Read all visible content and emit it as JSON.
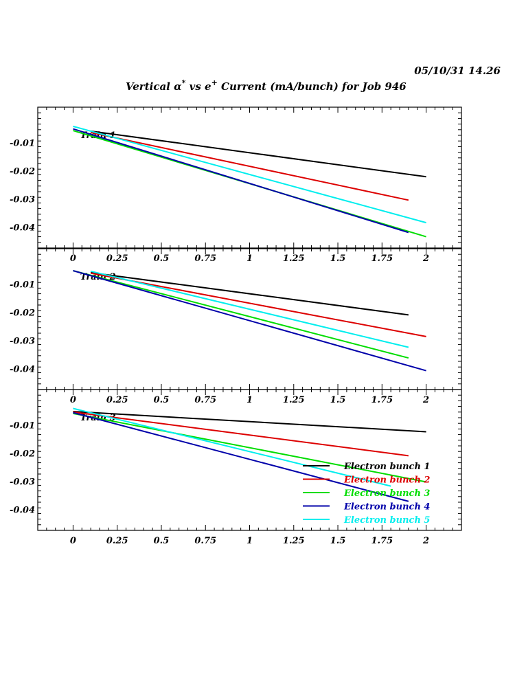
{
  "header": {
    "datetime": "05/10/31   14.26",
    "title_main": "Vertical α",
    "title_sup1": "*",
    "title_mid": " vs e",
    "title_sup2": "+",
    "title_end": " Current (mA/bunch) for Job 946"
  },
  "colors": {
    "series": [
      "#000000",
      "#dd0000",
      "#00dd00",
      "#0000aa",
      "#00eeee"
    ]
  },
  "chart_data": [
    {
      "type": "line",
      "panel_label": "Train 1",
      "xlim": [
        -0.2,
        2.2
      ],
      "ylim": [
        -0.0475,
        0.0025
      ],
      "x_ticks": [
        0,
        0.25,
        0.5,
        0.75,
        1,
        1.25,
        1.5,
        1.75,
        2
      ],
      "x_tick_labels": [
        "0",
        "0.25",
        "0.5",
        "0.75",
        "1",
        "1.25",
        "1.5",
        "1.75",
        "2"
      ],
      "y_ticks": [
        -0.01,
        -0.02,
        -0.03,
        -0.04
      ],
      "y_tick_labels": [
        "-0.01",
        "-0.02",
        "-0.03",
        "-0.04"
      ],
      "series": [
        {
          "name": "Electron bunch 1",
          "x": [
            0.1,
            2.0
          ],
          "y": [
            -0.006,
            -0.0222
          ]
        },
        {
          "name": "Electron bunch 2",
          "x": [
            0.1,
            1.9
          ],
          "y": [
            -0.0065,
            -0.0305
          ]
        },
        {
          "name": "Electron bunch 3",
          "x": [
            0.0,
            2.0
          ],
          "y": [
            -0.0058,
            -0.0435
          ]
        },
        {
          "name": "Electron bunch 4",
          "x": [
            0.0,
            1.9
          ],
          "y": [
            -0.0052,
            -0.042
          ]
        },
        {
          "name": "Electron bunch 5",
          "x": [
            0.0,
            2.0
          ],
          "y": [
            -0.0043,
            -0.0385
          ]
        }
      ]
    },
    {
      "type": "line",
      "panel_label": "Train 2",
      "xlim": [
        -0.2,
        2.2
      ],
      "ylim": [
        -0.0475,
        0.0025
      ],
      "x_ticks": [
        0,
        0.25,
        0.5,
        0.75,
        1,
        1.25,
        1.5,
        1.75,
        2
      ],
      "x_tick_labels": [
        "0",
        "0.25",
        "0.5",
        "0.75",
        "1",
        "1.25",
        "1.5",
        "1.75",
        "2"
      ],
      "y_ticks": [
        -0.01,
        -0.02,
        -0.03,
        -0.04
      ],
      "y_tick_labels": [
        "-0.01",
        "-0.02",
        "-0.03",
        "-0.04"
      ],
      "series": [
        {
          "name": "Electron bunch 1",
          "x": [
            0.1,
            1.9
          ],
          "y": [
            -0.006,
            -0.021
          ]
        },
        {
          "name": "Electron bunch 2",
          "x": [
            0.1,
            2.0
          ],
          "y": [
            -0.0062,
            -0.0287
          ]
        },
        {
          "name": "Electron bunch 3",
          "x": [
            0.0,
            1.9
          ],
          "y": [
            -0.0053,
            -0.0363
          ]
        },
        {
          "name": "Electron bunch 4",
          "x": [
            0.0,
            2.0
          ],
          "y": [
            -0.0053,
            -0.0408
          ]
        },
        {
          "name": "Electron bunch 5",
          "x": [
            0.1,
            1.9
          ],
          "y": [
            -0.0055,
            -0.0325
          ]
        }
      ]
    },
    {
      "type": "line",
      "panel_label": "Train 3",
      "xlim": [
        -0.2,
        2.2
      ],
      "ylim": [
        -0.0475,
        0.0025
      ],
      "x_ticks": [
        0,
        0.25,
        0.5,
        0.75,
        1,
        1.25,
        1.5,
        1.75,
        2
      ],
      "x_tick_labels": [
        "0",
        "0.25",
        "0.5",
        "0.75",
        "1",
        "1.25",
        "1.5",
        "1.75",
        "2"
      ],
      "y_ticks": [
        -0.01,
        -0.02,
        -0.03,
        -0.04
      ],
      "y_tick_labels": [
        "-0.01",
        "-0.02",
        "-0.03",
        "-0.04"
      ],
      "legend": [
        "Electron bunch 1",
        "Electron bunch 2",
        "Electron bunch 3",
        "Electron bunch 4",
        "Electron bunch 5"
      ],
      "series": [
        {
          "name": "Electron bunch 1",
          "x": [
            0.0,
            2.0
          ],
          "y": [
            -0.0053,
            -0.0125
          ]
        },
        {
          "name": "Electron bunch 2",
          "x": [
            0.0,
            1.9
          ],
          "y": [
            -0.0055,
            -0.021
          ]
        },
        {
          "name": "Electron bunch 3",
          "x": [
            0.0,
            2.0
          ],
          "y": [
            -0.006,
            -0.0303
          ]
        },
        {
          "name": "Electron bunch 4",
          "x": [
            0.0,
            1.9
          ],
          "y": [
            -0.0057,
            -0.0372
          ]
        },
        {
          "name": "Electron bunch 5",
          "x": [
            0.0,
            1.8
          ],
          "y": [
            -0.0042,
            -0.0318
          ]
        }
      ]
    }
  ]
}
